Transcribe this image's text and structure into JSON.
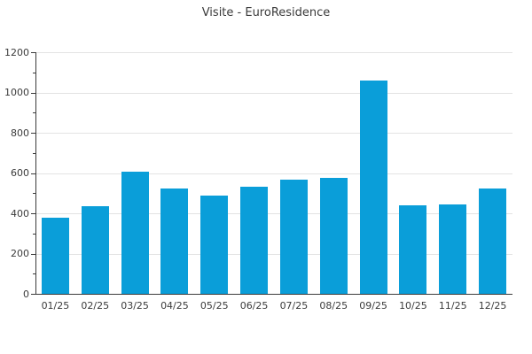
{
  "chart_data": {
    "type": "bar",
    "title": "Visite - EuroResidence",
    "categories": [
      "01/25",
      "02/25",
      "03/25",
      "04/25",
      "05/25",
      "06/25",
      "07/25",
      "08/25",
      "09/25",
      "10/25",
      "11/25",
      "12/25"
    ],
    "values": [
      380,
      435,
      605,
      525,
      490,
      530,
      565,
      575,
      1060,
      440,
      445,
      525
    ],
    "xlabel": "",
    "ylabel": "",
    "ylim": [
      0,
      1200
    ],
    "y_major_ticks": [
      0,
      200,
      400,
      600,
      800,
      1000,
      1200
    ],
    "y_minor_tick_step": 100,
    "grid": "horizontal-major",
    "legend": "none",
    "colors": {
      "bar": "#0a9ed9",
      "grid": "#e3e3e3",
      "axis": "#3b3b3b",
      "text": "#3b3b3b",
      "background": "#ffffff"
    }
  }
}
